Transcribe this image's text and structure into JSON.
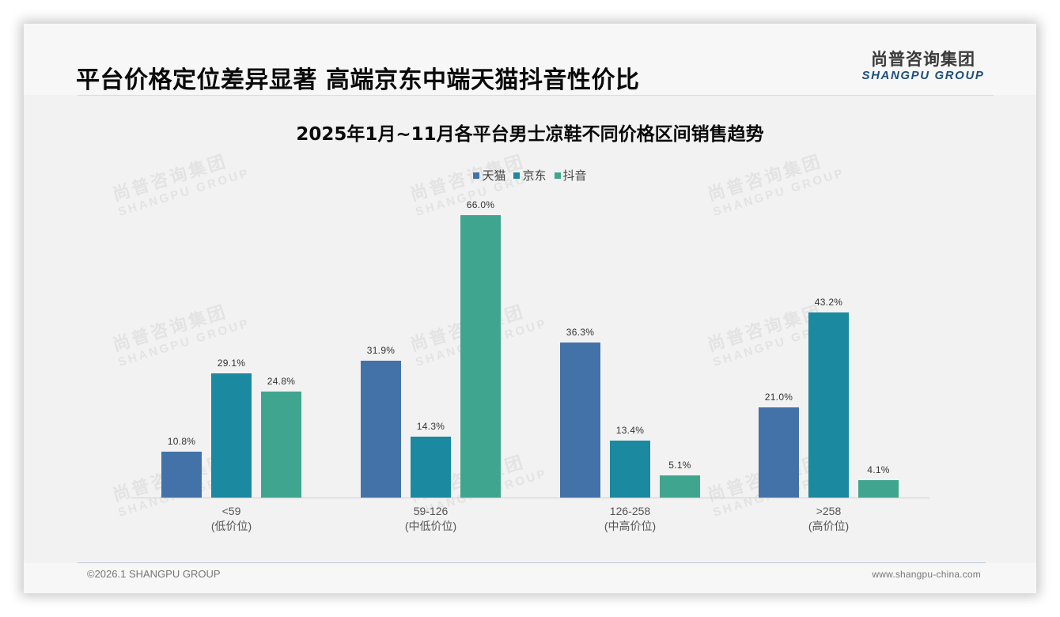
{
  "header": {
    "title": "平台价格定位差异显著 高端京东中端天猫抖音性价比",
    "logo_cn": "尚普咨询集团",
    "logo_en": "SHANGPU GROUP"
  },
  "watermark": {
    "cn": "尚普咨询集团",
    "en": "SHANGPU GROUP"
  },
  "footer": {
    "copyright": "©2026.1 SHANGPU GROUP",
    "website": "www.shangpu-china.com"
  },
  "colors": {
    "tmall": "#4372a8",
    "jd": "#1b89a0",
    "douyin": "#40a58f"
  },
  "chart_data": {
    "type": "bar",
    "title": "2025年1月~11月各平台男士凉鞋不同价格区间销售趋势",
    "xlabel": "",
    "ylabel": "",
    "ylim": [
      0,
      70
    ],
    "grid": false,
    "legend_position": "top",
    "categories": [
      "<59\n(低价位)",
      "59-126\n(中低价位)",
      "126-258\n(中高价位)",
      ">258\n(高价位)"
    ],
    "category_labels": [
      {
        "range": "<59",
        "tier": "(低价位)"
      },
      {
        "range": "59-126",
        "tier": "(中低价位)"
      },
      {
        "range": "126-258",
        "tier": "(中高价位)"
      },
      {
        "range": ">258",
        "tier": "(高价位)"
      }
    ],
    "series": [
      {
        "name": "天猫",
        "color": "#4372a8",
        "values": [
          10.8,
          31.9,
          36.3,
          21.0
        ],
        "labels": [
          "10.8%",
          "31.9%",
          "36.3%",
          "21.0%"
        ]
      },
      {
        "name": "京东",
        "color": "#1b89a0",
        "values": [
          29.1,
          14.3,
          13.4,
          43.2
        ],
        "labels": [
          "29.1%",
          "14.3%",
          "13.4%",
          "43.2%"
        ]
      },
      {
        "name": "抖音",
        "color": "#40a58f",
        "values": [
          24.8,
          66.0,
          5.1,
          4.1
        ],
        "labels": [
          "24.8%",
          "66.0%",
          "5.1%",
          "4.1%"
        ]
      }
    ]
  }
}
